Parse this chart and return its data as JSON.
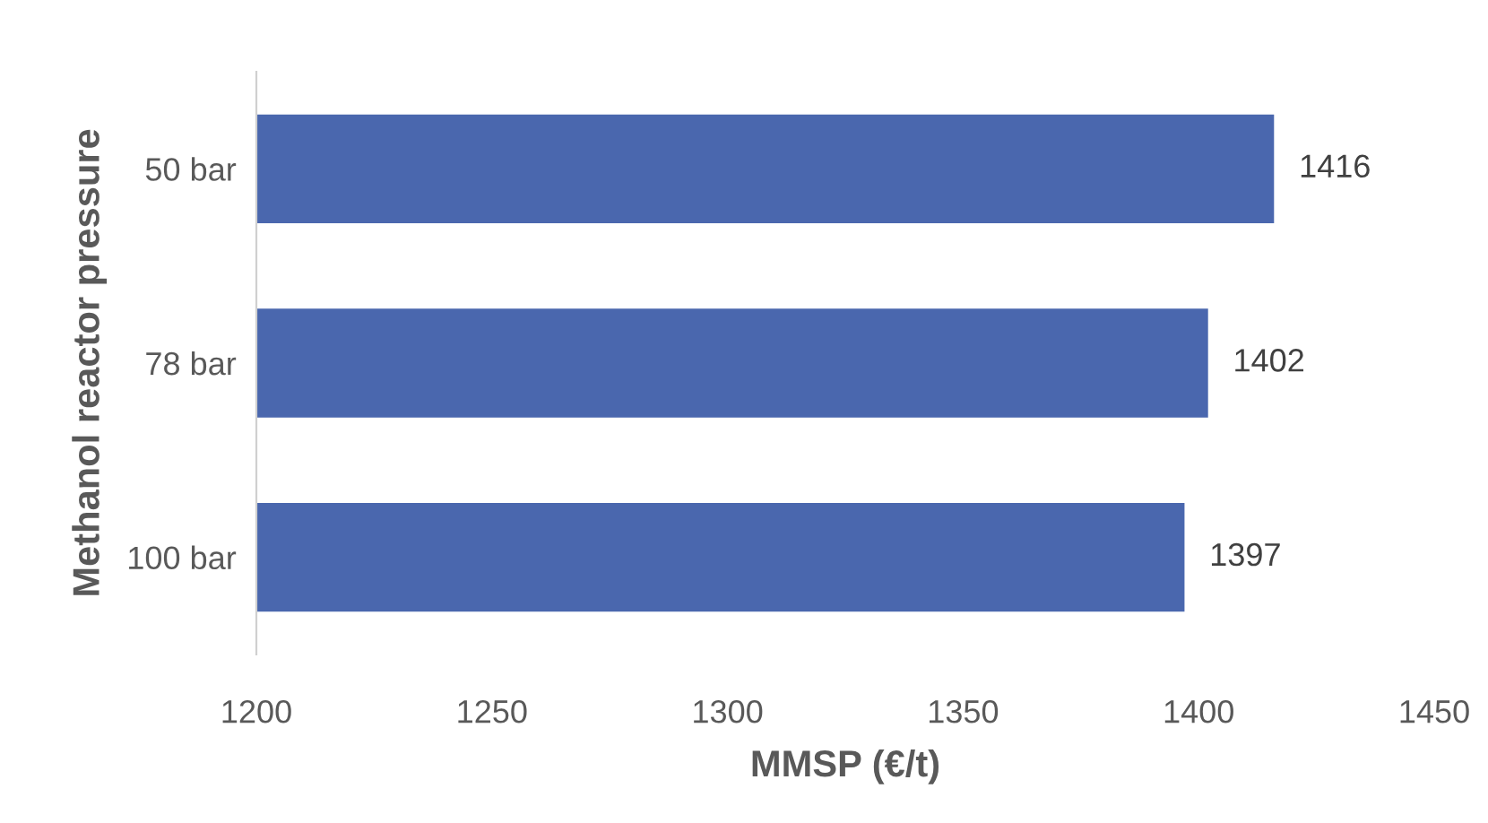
{
  "chart_data": {
    "type": "bar",
    "orientation": "horizontal",
    "xlabel": "MMSP (€/t)",
    "ylabel": "Methanol reactor pressure",
    "categories": [
      "50 bar",
      "78 bar",
      "100 bar"
    ],
    "values": [
      1416,
      1402,
      1397
    ],
    "color": "#4a67ae",
    "xlim": [
      1200,
      1450
    ],
    "xticks": [
      1200,
      1250,
      1300,
      1350,
      1400,
      1450
    ],
    "grid": false,
    "data_labels": true
  }
}
